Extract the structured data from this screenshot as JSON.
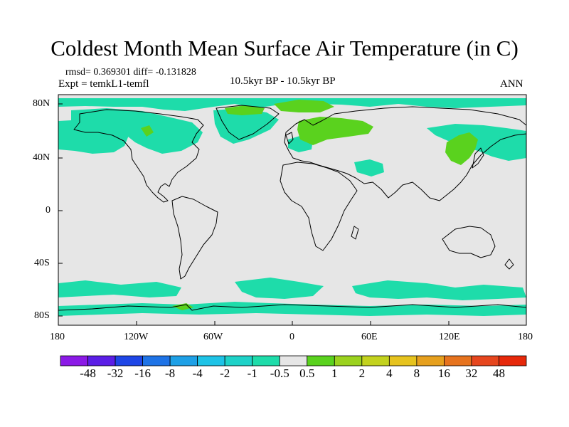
{
  "title": "Coldest Month Mean Surface Air Temperature (in C)",
  "stats": "rmsd= 0.369301 diff= -0.131828",
  "experiment": "Expt = temkL1-temfl",
  "period": "10.5kyr BP - 10.5kyr BP",
  "season": "ANN",
  "map": {
    "background_color": "#e6e6e6",
    "lat_ticks": [
      "80N",
      "40N",
      "0",
      "40S",
      "80S"
    ],
    "lon_ticks": [
      "180",
      "120W",
      "60W",
      "0",
      "60E",
      "120E",
      "180"
    ]
  },
  "colorbar": {
    "labels": [
      "-48",
      "-32",
      "-16",
      "-8",
      "-4",
      "-2",
      "-1",
      "-0.5",
      "0.5",
      "1",
      "2",
      "4",
      "8",
      "16",
      "32",
      "48"
    ],
    "colors": [
      "#8b1ae6",
      "#5b1ee6",
      "#1e46e6",
      "#1e73e6",
      "#1ea0e6",
      "#1ec3e6",
      "#1ed2c8",
      "#1edcaa",
      "#e6e6e6",
      "#5ad21e",
      "#9bd21e",
      "#c3d21e",
      "#e6c31e",
      "#e6a01e",
      "#e6731e",
      "#e6461e",
      "#e6280a"
    ]
  }
}
